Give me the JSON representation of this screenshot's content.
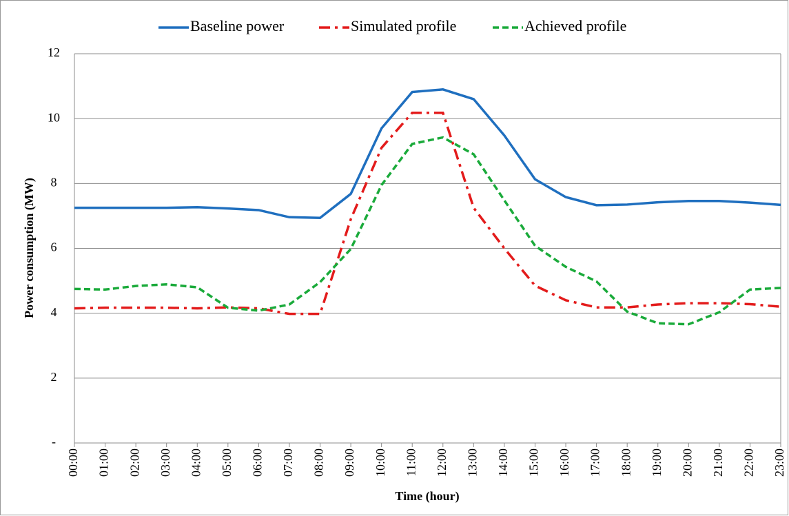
{
  "chart_data": {
    "type": "line",
    "x_label": "Time (hour)",
    "y_label": "Power consumption (MW)",
    "categories": [
      "00:00",
      "01:00",
      "02:00",
      "03:00",
      "04:00",
      "05:00",
      "06:00",
      "07:00",
      "08:00",
      "09:00",
      "10:00",
      "11:00",
      "12:00",
      "13:00",
      "14:00",
      "15:00",
      "16:00",
      "17:00",
      "18:00",
      "19:00",
      "20:00",
      "21:00",
      "22:00",
      "23:00"
    ],
    "series": [
      {
        "name": "Baseline power",
        "color": "#1f6fbf",
        "values": [
          7.25,
          7.25,
          7.25,
          7.25,
          7.27,
          7.23,
          7.18,
          6.96,
          6.94,
          7.68,
          9.7,
          10.82,
          10.9,
          10.6,
          9.48,
          8.13,
          7.58,
          7.33,
          7.35,
          7.42,
          7.46,
          7.46,
          7.41,
          7.34
        ]
      },
      {
        "name": "Simulated profile",
        "color": "#e31b1b",
        "values": [
          4.15,
          4.17,
          4.17,
          4.17,
          4.15,
          4.18,
          4.15,
          3.98,
          3.98,
          6.9,
          9.1,
          10.18,
          10.18,
          7.25,
          6.0,
          4.85,
          4.4,
          4.18,
          4.18,
          4.27,
          4.31,
          4.31,
          4.28,
          4.2
        ]
      },
      {
        "name": "Achieved profile",
        "color": "#1aaa3a",
        "values": [
          4.75,
          4.73,
          4.84,
          4.89,
          4.8,
          4.17,
          4.08,
          4.27,
          4.96,
          5.98,
          7.95,
          9.22,
          9.42,
          8.9,
          7.48,
          6.08,
          5.43,
          4.98,
          4.05,
          3.69,
          3.66,
          4.03,
          4.73,
          4.78
        ]
      }
    ],
    "ylim": [
      0,
      12
    ],
    "yticks": [
      {
        "value": 0,
        "label": "-"
      },
      2,
      4,
      6,
      8,
      10,
      12
    ],
    "grid": true,
    "legend": "top"
  }
}
